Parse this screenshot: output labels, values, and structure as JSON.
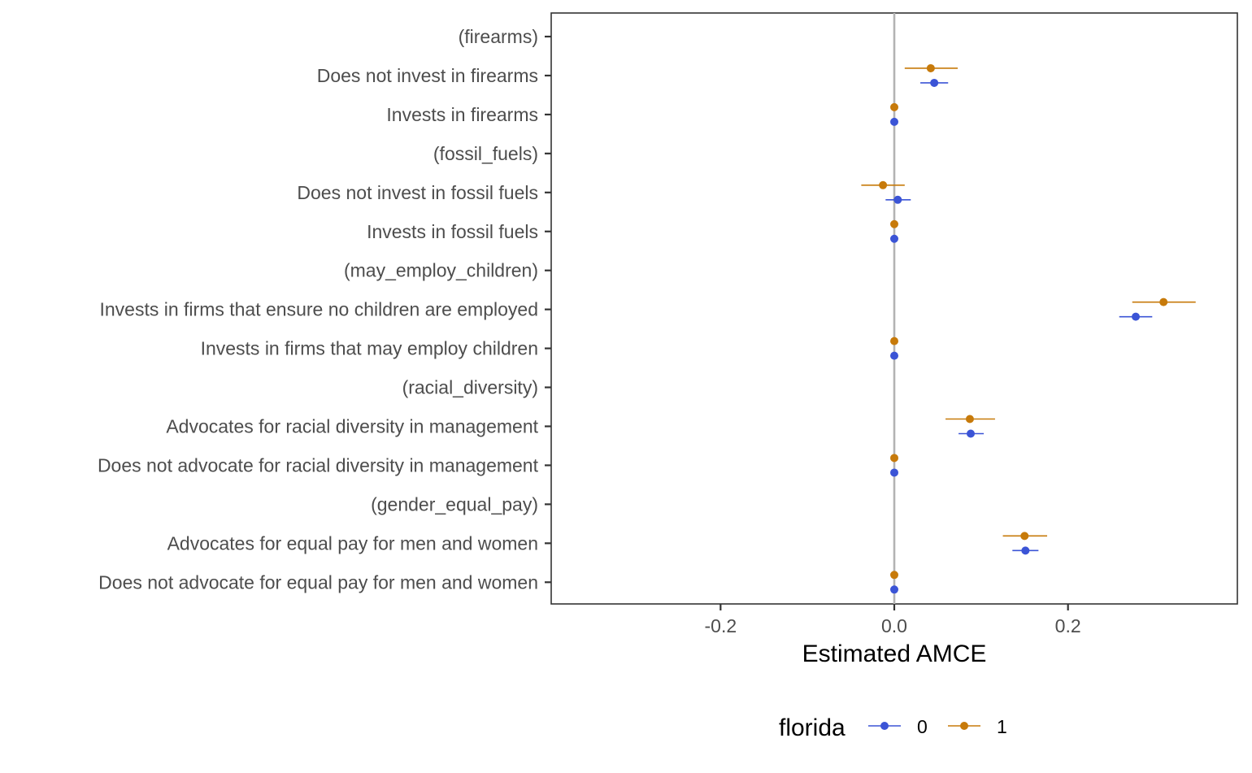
{
  "chart_data": {
    "type": "scatter",
    "subtype": "coefficient-plot-with-error-bars",
    "title": "",
    "xlabel": "Estimated AMCE",
    "ylabel": "",
    "xlim": [
      -0.395,
      0.395
    ],
    "x_ticks": [
      -0.2,
      0.0,
      0.2
    ],
    "x_tick_labels": [
      "-0.2",
      "0.0",
      "0.2"
    ],
    "reference_line_x": 0.0,
    "grid": false,
    "legend": {
      "title": "florida",
      "placement": "bottom"
    },
    "categories": [
      "(firearms)",
      "Does not invest in firearms",
      "Invests in firearms",
      "(fossil_fuels)",
      "Does not invest in fossil fuels",
      "Invests in fossil fuels",
      "(may_employ_children)",
      "Invests in firms that ensure no children are employed",
      "Invests in firms that may employ children",
      "(racial_diversity)",
      "Advocates for racial diversity in management",
      "Does not advocate for racial diversity in management",
      "(gender_equal_pay)",
      "Advocates for equal pay for men and women",
      "Does not advocate for equal pay for men and women"
    ],
    "series": [
      {
        "name": "0",
        "color": "#3B54D6",
        "estimates": [
          null,
          0.046,
          0.0,
          null,
          0.004,
          0.0,
          null,
          0.278,
          0.0,
          null,
          0.088,
          0.0,
          null,
          0.151,
          0.0
        ],
        "lower": [
          null,
          0.03,
          0.0,
          null,
          -0.01,
          0.0,
          null,
          0.259,
          0.0,
          null,
          0.074,
          0.0,
          null,
          0.136,
          0.0
        ],
        "upper": [
          null,
          0.062,
          0.0,
          null,
          0.019,
          0.0,
          null,
          0.297,
          0.0,
          null,
          0.103,
          0.0,
          null,
          0.166,
          0.0
        ]
      },
      {
        "name": "1",
        "color": "#C77A0A",
        "estimates": [
          null,
          0.042,
          0.0,
          null,
          -0.013,
          0.0,
          null,
          0.31,
          0.0,
          null,
          0.087,
          0.0,
          null,
          0.15,
          0.0
        ],
        "lower": [
          null,
          0.012,
          0.0,
          null,
          -0.038,
          0.0,
          null,
          0.274,
          0.0,
          null,
          0.059,
          0.0,
          null,
          0.125,
          0.0
        ],
        "upper": [
          null,
          0.073,
          0.0,
          null,
          0.012,
          0.0,
          null,
          0.347,
          0.0,
          null,
          0.116,
          0.0,
          null,
          0.176,
          0.0
        ]
      }
    ]
  }
}
